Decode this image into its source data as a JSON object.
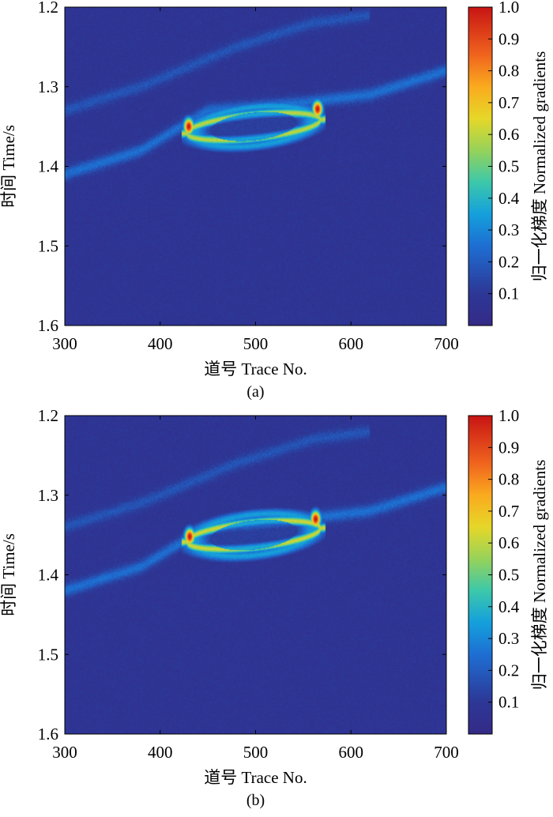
{
  "chart_data": [
    {
      "type": "heatmap",
      "title": "",
      "caption": "(a)",
      "xlabel": "道号 Trace No.",
      "ylabel": "时间 Time/s",
      "colorbar_label": "归一化梯度 Normalized gradients",
      "xlim": [
        300,
        700
      ],
      "ylim": [
        1.6,
        1.2
      ],
      "y_inverted": true,
      "xticks": [
        "300",
        "400",
        "500",
        "600",
        "700"
      ],
      "xtick_values": [
        300,
        400,
        500,
        600,
        700
      ],
      "yticks": [
        "1.2",
        "1.3",
        "1.4",
        "1.5",
        "1.6"
      ],
      "ytick_values": [
        1.2,
        1.3,
        1.4,
        1.5,
        1.6
      ],
      "colorbar_ticks": [
        "1.0",
        "0.9",
        "0.8",
        "0.7",
        "0.6",
        "0.5",
        "0.4",
        "0.3",
        "0.2",
        "0.1"
      ],
      "colorbar_values": [
        1.0,
        0.9,
        0.8,
        0.7,
        0.6,
        0.5,
        0.4,
        0.3,
        0.2,
        0.1
      ],
      "colormap": "jet",
      "background_value": 0.08,
      "features": [
        {
          "kind": "ellipse-ring",
          "x_range": [
            428,
            568
          ],
          "t_center": 1.35,
          "t_halfwidth": 0.02,
          "value": 0.6
        },
        {
          "kind": "hotspot",
          "x": 430,
          "t": 1.35,
          "value": 1.0
        },
        {
          "kind": "hotspot",
          "x": 565,
          "t": 1.328,
          "value": 1.0
        },
        {
          "kind": "faint-horizon",
          "points": [
            [
              300,
              1.41
            ],
            [
              380,
              1.38
            ],
            [
              450,
              1.33
            ],
            [
              550,
              1.32
            ],
            [
              620,
              1.31
            ],
            [
              700,
              1.28
            ]
          ],
          "value": 0.25
        },
        {
          "kind": "faint-horizon",
          "points": [
            [
              300,
              1.33
            ],
            [
              380,
              1.3
            ],
            [
              480,
              1.25
            ],
            [
              560,
              1.22
            ],
            [
              620,
              1.21
            ]
          ],
          "value": 0.18
        }
      ]
    },
    {
      "type": "heatmap",
      "title": "",
      "caption": "(b)",
      "xlabel": "道号 Trace No.",
      "ylabel": "时间 Time/s",
      "colorbar_label": "归一化梯度 Normalized gradients",
      "xlim": [
        300,
        700
      ],
      "ylim": [
        1.6,
        1.2
      ],
      "y_inverted": true,
      "xticks": [
        "300",
        "400",
        "500",
        "600",
        "700"
      ],
      "xtick_values": [
        300,
        400,
        500,
        600,
        700
      ],
      "yticks": [
        "1.2",
        "1.3",
        "1.4",
        "1.5",
        "1.6"
      ],
      "ytick_values": [
        1.2,
        1.3,
        1.4,
        1.5,
        1.6
      ],
      "colorbar_ticks": [
        "1.0",
        "0.9",
        "0.8",
        "0.7",
        "0.6",
        "0.5",
        "0.4",
        "0.3",
        "0.2",
        "0.1"
      ],
      "colorbar_values": [
        1.0,
        0.9,
        0.8,
        0.7,
        0.6,
        0.5,
        0.4,
        0.3,
        0.2,
        0.1
      ],
      "colormap": "jet",
      "background_value": 0.08,
      "features": [
        {
          "kind": "ellipse-ring",
          "x_range": [
            428,
            568
          ],
          "t_center": 1.35,
          "t_halfwidth": 0.021,
          "value": 0.62
        },
        {
          "kind": "hotspot",
          "x": 431,
          "t": 1.352,
          "value": 1.0
        },
        {
          "kind": "hotspot",
          "x": 563,
          "t": 1.33,
          "value": 1.0
        },
        {
          "kind": "faint-horizon",
          "points": [
            [
              300,
              1.42
            ],
            [
              380,
              1.39
            ],
            [
              450,
              1.34
            ],
            [
              550,
              1.33
            ],
            [
              620,
              1.32
            ],
            [
              700,
              1.29
            ]
          ],
          "value": 0.25
        },
        {
          "kind": "faint-horizon",
          "points": [
            [
              300,
              1.34
            ],
            [
              380,
              1.31
            ],
            [
              480,
              1.26
            ],
            [
              560,
              1.23
            ],
            [
              620,
              1.22
            ]
          ],
          "value": 0.18
        }
      ]
    }
  ]
}
